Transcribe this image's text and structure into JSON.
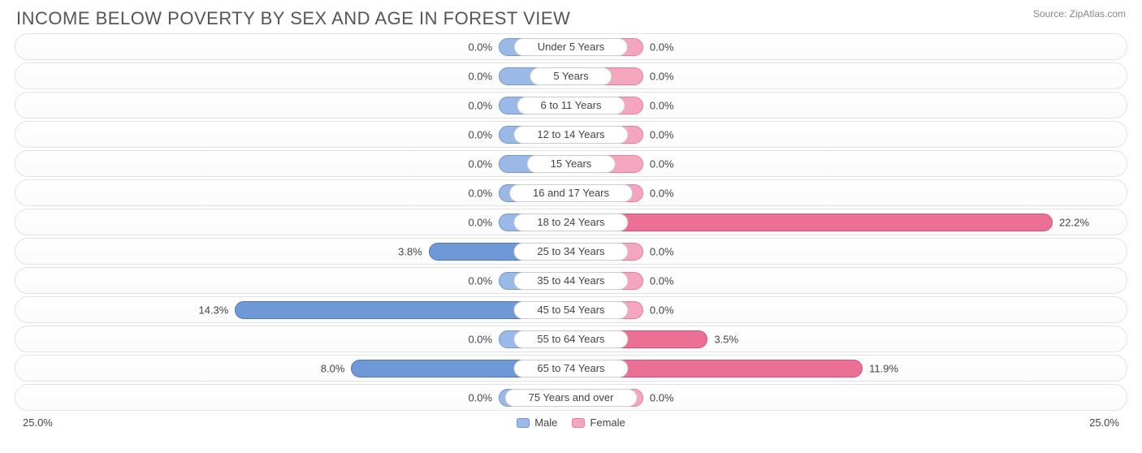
{
  "title": "INCOME BELOW POVERTY BY SEX AND AGE IN FOREST VIEW",
  "source": "Source: ZipAtlas.com",
  "axis_max": 25.0,
  "axis_label": "25.0%",
  "base_bar_pct": 6.5,
  "colors": {
    "male_fill": "#9bb9e6",
    "male_border": "#6f98d6",
    "male_strong_fill": "#6f98d6",
    "male_strong_border": "#4a77c0",
    "female_fill": "#f4a6be",
    "female_border": "#e97ba0",
    "female_strong_fill": "#ec6f96",
    "female_strong_border": "#d84f7d",
    "track_border": "#e3e3e3",
    "text": "#444444"
  },
  "legend": {
    "male": "Male",
    "female": "Female"
  },
  "rows": [
    {
      "label": "Under 5 Years",
      "male": 0.0,
      "female": 0.0
    },
    {
      "label": "5 Years",
      "male": 0.0,
      "female": 0.0
    },
    {
      "label": "6 to 11 Years",
      "male": 0.0,
      "female": 0.0
    },
    {
      "label": "12 to 14 Years",
      "male": 0.0,
      "female": 0.0
    },
    {
      "label": "15 Years",
      "male": 0.0,
      "female": 0.0
    },
    {
      "label": "16 and 17 Years",
      "male": 0.0,
      "female": 0.0
    },
    {
      "label": "18 to 24 Years",
      "male": 0.0,
      "female": 22.2
    },
    {
      "label": "25 to 34 Years",
      "male": 3.8,
      "female": 0.0
    },
    {
      "label": "35 to 44 Years",
      "male": 0.0,
      "female": 0.0
    },
    {
      "label": "45 to 54 Years",
      "male": 14.3,
      "female": 0.0
    },
    {
      "label": "55 to 64 Years",
      "male": 0.0,
      "female": 3.5
    },
    {
      "label": "65 to 74 Years",
      "male": 8.0,
      "female": 11.9
    },
    {
      "label": "75 Years and over",
      "male": 0.0,
      "female": 0.0
    }
  ]
}
